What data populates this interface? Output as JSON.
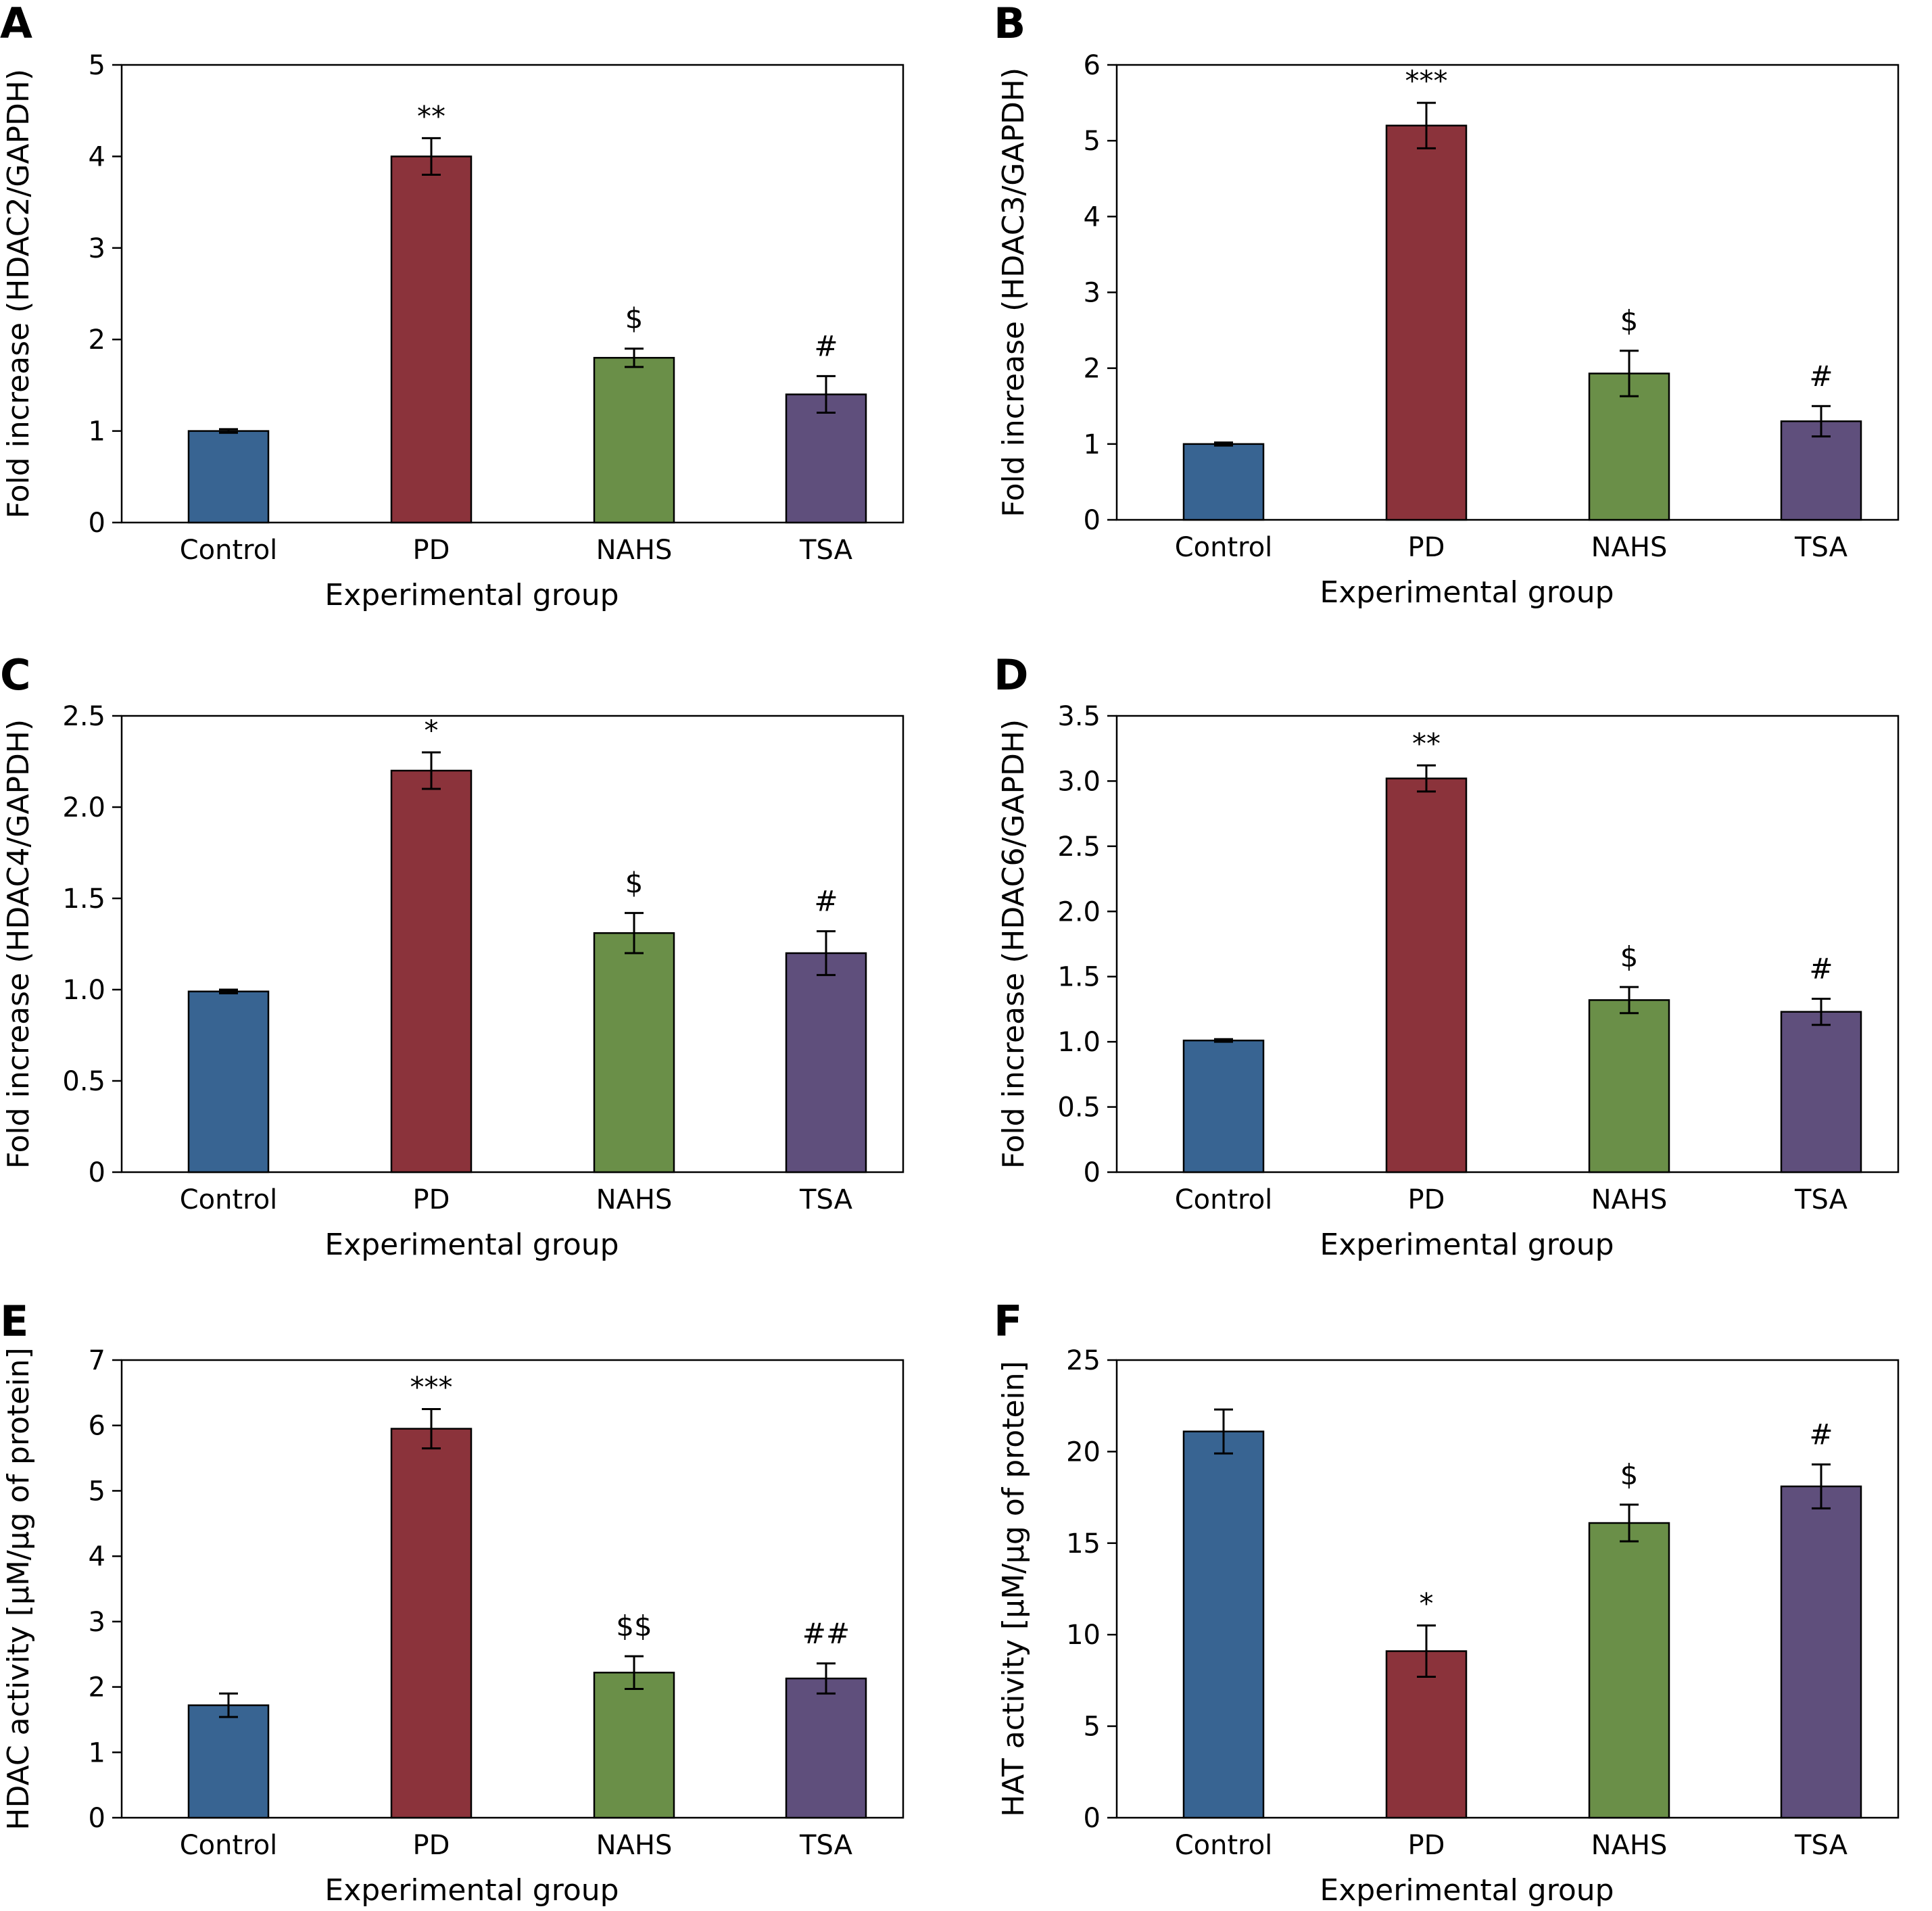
{
  "colors": {
    "Control": "#386492",
    "PD": "#8b333b",
    "NAHS": "#6a8f48",
    "TSA": "#5f4f7c"
  },
  "chart_data": [
    {
      "type": "bar",
      "panel": "A",
      "categories": [
        "Control",
        "PD",
        "NAHS",
        "TSA"
      ],
      "values": [
        1.0,
        4.0,
        1.8,
        1.4
      ],
      "errors": [
        0.02,
        0.2,
        0.1,
        0.2
      ],
      "annotations": [
        "",
        "**",
        "$",
        "#"
      ],
      "xlabel": "Experimental group",
      "ylabel": "Fold increase (HDAC2/GAPDH)",
      "ylim": [
        0,
        5
      ],
      "yticks": [
        0,
        1,
        2,
        3,
        4,
        5
      ],
      "ytick_labels": [
        "0",
        "1",
        "2",
        "3",
        "4",
        "5"
      ]
    },
    {
      "type": "bar",
      "panel": "B",
      "categories": [
        "Control",
        "PD",
        "NAHS",
        "TSA"
      ],
      "values": [
        1.0,
        5.2,
        1.93,
        1.3
      ],
      "errors": [
        0.02,
        0.3,
        0.3,
        0.2
      ],
      "annotations": [
        "",
        "***",
        "$",
        "#"
      ],
      "xlabel": "Experimental group",
      "ylabel": "Fold increase (HDAC3/GAPDH)",
      "ylim": [
        0,
        6
      ],
      "yticks": [
        0,
        1,
        2,
        3,
        4,
        5,
        6
      ],
      "ytick_labels": [
        "0",
        "1",
        "2",
        "3",
        "4",
        "5",
        "6"
      ]
    },
    {
      "type": "bar",
      "panel": "C",
      "categories": [
        "Control",
        "PD",
        "NAHS",
        "TSA"
      ],
      "values": [
        0.99,
        2.2,
        1.31,
        1.2
      ],
      "errors": [
        0.01,
        0.1,
        0.11,
        0.12
      ],
      "annotations": [
        "",
        "*",
        "$",
        "#"
      ],
      "xlabel": "Experimental group",
      "ylabel": "Fold increase (HDAC4/GAPDH)",
      "ylim": [
        0,
        2.5
      ],
      "yticks": [
        0,
        0.5,
        1.0,
        1.5,
        2.0,
        2.5
      ],
      "ytick_labels": [
        "0",
        "0.5",
        "1.0",
        "1.5",
        "2.0",
        "2.5"
      ]
    },
    {
      "type": "bar",
      "panel": "D",
      "categories": [
        "Control",
        "PD",
        "NAHS",
        "TSA"
      ],
      "values": [
        1.01,
        3.02,
        1.32,
        1.23
      ],
      "errors": [
        0.01,
        0.1,
        0.1,
        0.1
      ],
      "annotations": [
        "",
        "**",
        "$",
        "#"
      ],
      "xlabel": "Experimental group",
      "ylabel": "Fold increase (HDAC6/GAPDH)",
      "ylim": [
        0,
        3.5
      ],
      "yticks": [
        0,
        0.5,
        1.0,
        1.5,
        2.0,
        2.5,
        3.0,
        3.5
      ],
      "ytick_labels": [
        "0",
        "0.5",
        "1.0",
        "1.5",
        "2.0",
        "2.5",
        "3.0",
        "3.5"
      ]
    },
    {
      "type": "bar",
      "panel": "E",
      "categories": [
        "Control",
        "PD",
        "NAHS",
        "TSA"
      ],
      "values": [
        1.72,
        5.95,
        2.22,
        2.13
      ],
      "errors": [
        0.18,
        0.3,
        0.25,
        0.23
      ],
      "annotations": [
        "",
        "***",
        "$$",
        "##"
      ],
      "xlabel": "Experimental group",
      "ylabel": "HDAC activity [µM/µg of protein]",
      "ylim": [
        0,
        7
      ],
      "yticks": [
        0,
        1,
        2,
        3,
        4,
        5,
        6,
        7
      ],
      "ytick_labels": [
        "0",
        "1",
        "2",
        "3",
        "4",
        "5",
        "6",
        "7"
      ]
    },
    {
      "type": "bar",
      "panel": "F",
      "categories": [
        "Control",
        "PD",
        "NAHS",
        "TSA"
      ],
      "values": [
        21.1,
        9.1,
        16.1,
        18.1
      ],
      "errors": [
        1.2,
        1.4,
        1.0,
        1.2
      ],
      "annotations": [
        "",
        "*",
        "$",
        "#"
      ],
      "xlabel": "Experimental group",
      "ylabel": "HAT activity [µM/µg of protein]",
      "ylim": [
        0,
        25
      ],
      "yticks": [
        0,
        5,
        10,
        15,
        20,
        25
      ],
      "ytick_labels": [
        "0",
        "5",
        "10",
        "15",
        "20",
        "25"
      ]
    }
  ]
}
